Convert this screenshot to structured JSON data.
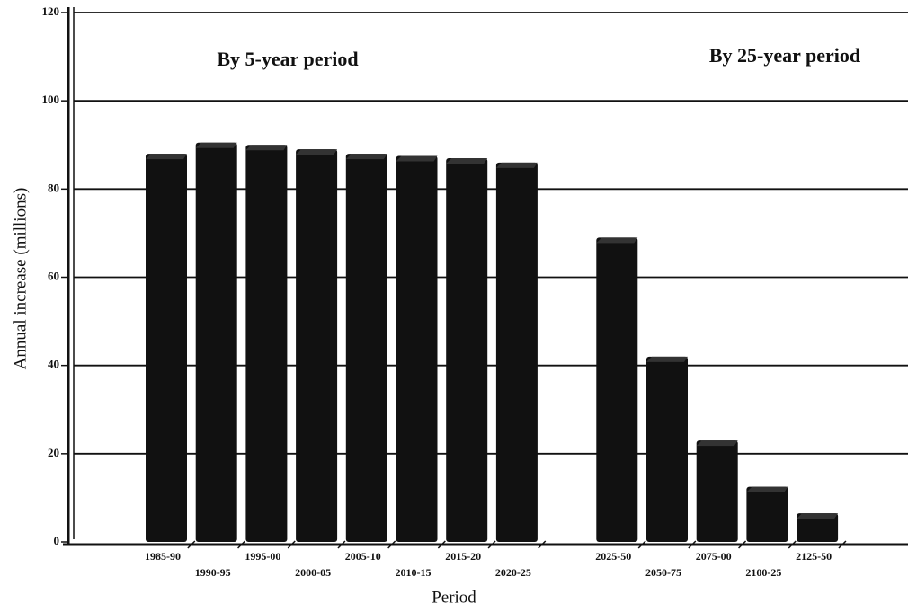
{
  "chart_data": {
    "type": "bar",
    "annotations": [
      "By 5-year period",
      "By 25-year period"
    ],
    "xlabel": "Period",
    "ylabel": "Annual increase (millions)",
    "categories": [
      "1985-90",
      "1990-95",
      "1995-00",
      "2000-05",
      "2005-10",
      "2010-15",
      "2015-20",
      "2020-25",
      "2025-50",
      "2050-75",
      "2075-00",
      "2100-25",
      "2125-50"
    ],
    "values": [
      88,
      90.5,
      90,
      89,
      88,
      87.5,
      87,
      86,
      69,
      42,
      23,
      12.5,
      6.5
    ],
    "color": "#111111",
    "ylim": [
      0,
      120
    ],
    "yticks": [
      0,
      20,
      40,
      60,
      80,
      100,
      120
    ],
    "grid": true
  }
}
